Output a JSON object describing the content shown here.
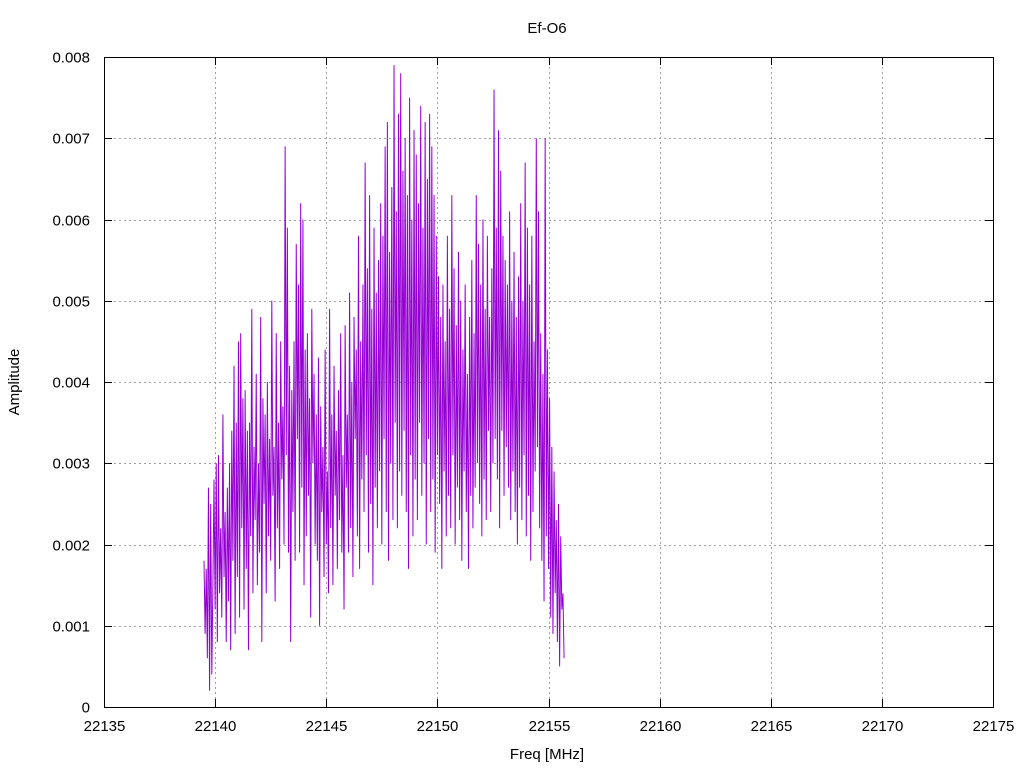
{
  "chart_data": {
    "type": "line",
    "title": "Ef-O6",
    "xlabel": "Freq [MHz]",
    "ylabel": "Amplitude",
    "xlim": [
      22135,
      22175
    ],
    "ylim": [
      0,
      0.008
    ],
    "grid": true,
    "legend": "none",
    "x_ticks": [
      "22135",
      "22140",
      "22145",
      "22150",
      "22155",
      "22160",
      "22165",
      "22170",
      "22175"
    ],
    "y_ticks": [
      "0",
      "0.001",
      "0.002",
      "0.003",
      "0.004",
      "0.005",
      "0.006",
      "0.007",
      "0.008"
    ],
    "series": [
      {
        "color": "#9400d3",
        "x_start": 22139.5,
        "x_step": 0.05,
        "values": [
          0.0018,
          0.0009,
          0.0017,
          0.0006,
          0.0027,
          0.0002,
          0.0025,
          0.0004,
          0.0015,
          0.0028,
          0.0012,
          0.003,
          0.0008,
          0.0031,
          0.0014,
          0.0022,
          0.0011,
          0.0036,
          0.0016,
          0.0024,
          0.0008,
          0.0027,
          0.0013,
          0.003,
          0.0007,
          0.0034,
          0.0018,
          0.0042,
          0.0009,
          0.0035,
          0.0016,
          0.0045,
          0.0011,
          0.0046,
          0.0022,
          0.0038,
          0.0012,
          0.0039,
          0.0017,
          0.0034,
          0.0007,
          0.0035,
          0.0021,
          0.0049,
          0.0014,
          0.0032,
          0.0023,
          0.0041,
          0.0015,
          0.003,
          0.0019,
          0.0048,
          0.0008,
          0.0038,
          0.0025,
          0.0036,
          0.0014,
          0.004,
          0.0021,
          0.0033,
          0.0018,
          0.005,
          0.0026,
          0.0032,
          0.0013,
          0.0046,
          0.0022,
          0.0035,
          0.0017,
          0.0045,
          0.0028,
          0.0037,
          0.002,
          0.0069,
          0.0031,
          0.0059,
          0.0019,
          0.0042,
          0.0008,
          0.0039,
          0.0024,
          0.0045,
          0.0018,
          0.0057,
          0.0033,
          0.0052,
          0.0019,
          0.0062,
          0.0027,
          0.006,
          0.0015,
          0.0044,
          0.0021,
          0.0046,
          0.0026,
          0.0038,
          0.0011,
          0.0049,
          0.003,
          0.0041,
          0.002,
          0.0036,
          0.0018,
          0.0043,
          0.001,
          0.0037,
          0.0024,
          0.0032,
          0.0016,
          0.0044,
          0.002,
          0.0029,
          0.0014,
          0.0049,
          0.0022,
          0.0036,
          0.0015,
          0.0042,
          0.0026,
          0.0034,
          0.0017,
          0.0039,
          0.0023,
          0.0046,
          0.0019,
          0.0031,
          0.0012,
          0.0047,
          0.0027,
          0.0036,
          0.0019,
          0.0051,
          0.0022,
          0.004,
          0.0016,
          0.0048,
          0.0033,
          0.0044,
          0.0021,
          0.0058,
          0.0017,
          0.0045,
          0.0028,
          0.0052,
          0.0024,
          0.0067,
          0.0031,
          0.0054,
          0.0019,
          0.0063,
          0.0025,
          0.0049,
          0.0015,
          0.0059,
          0.0027,
          0.0051,
          0.0022,
          0.0055,
          0.0029,
          0.0062,
          0.002,
          0.0058,
          0.0033,
          0.0069,
          0.0024,
          0.0072,
          0.0018,
          0.0056,
          0.003,
          0.0064,
          0.0023,
          0.0079,
          0.0035,
          0.0061,
          0.0022,
          0.0073,
          0.0029,
          0.0078,
          0.0026,
          0.0066,
          0.0034,
          0.007,
          0.0024,
          0.0063,
          0.0017,
          0.0075,
          0.0031,
          0.006,
          0.0021,
          0.0071,
          0.0028,
          0.0068,
          0.0023,
          0.0062,
          0.0035,
          0.0074,
          0.0026,
          0.0059,
          0.003,
          0.0072,
          0.002,
          0.0065,
          0.0033,
          0.0073,
          0.0024,
          0.0069,
          0.0028,
          0.0063,
          0.0019,
          0.0058,
          0.0031,
          0.0053,
          0.0025,
          0.0048,
          0.0017,
          0.0052,
          0.0029,
          0.0045,
          0.0021,
          0.0058,
          0.0026,
          0.0049,
          0.0022,
          0.0063,
          0.0031,
          0.0054,
          0.002,
          0.0047,
          0.0027,
          0.0056,
          0.0023,
          0.005,
          0.0018,
          0.0044,
          0.0029,
          0.0052,
          0.0024,
          0.0041,
          0.0017,
          0.0048,
          0.0026,
          0.0055,
          0.0022,
          0.0046,
          0.0027,
          0.0063,
          0.003,
          0.0057,
          0.0025,
          0.0052,
          0.0021,
          0.006,
          0.0028,
          0.0049,
          0.0023,
          0.0058,
          0.0034,
          0.0048,
          0.0024,
          0.0054,
          0.003,
          0.0076,
          0.0033,
          0.0059,
          0.0028,
          0.0071,
          0.0022,
          0.0066,
          0.0034,
          0.0058,
          0.0026,
          0.0055,
          0.0032,
          0.0052,
          0.0027,
          0.0061,
          0.0023,
          0.005,
          0.0029,
          0.0056,
          0.0024,
          0.0048,
          0.002,
          0.0053,
          0.0027,
          0.0062,
          0.0023,
          0.005,
          0.0031,
          0.0067,
          0.0021,
          0.0059,
          0.0026,
          0.0052,
          0.0018,
          0.0058,
          0.0024,
          0.0045,
          0.0029,
          0.007,
          0.0032,
          0.0061,
          0.0022,
          0.0046,
          0.0018,
          0.0041,
          0.0013,
          0.007,
          0.0021,
          0.0044,
          0.0017,
          0.0038,
          0.0011,
          0.0032,
          0.0009,
          0.0029,
          0.0014,
          0.0023,
          0.0008,
          0.0025,
          0.0005,
          0.0021,
          0.0012,
          0.0014,
          0.0006
        ]
      }
    ]
  }
}
